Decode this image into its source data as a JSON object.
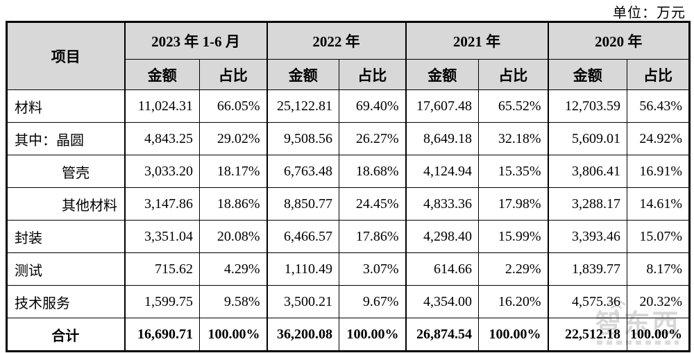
{
  "unit_label": "单位：万元",
  "table": {
    "item_header": "项目",
    "groups": [
      {
        "label": "2023 年 1-6 月",
        "sub": [
          "金额",
          "占比"
        ]
      },
      {
        "label": "2022 年",
        "sub": [
          "金额",
          "占比"
        ]
      },
      {
        "label": "2021 年",
        "sub": [
          "金额",
          "占比"
        ]
      },
      {
        "label": "2020 年",
        "sub": [
          "金额",
          "占比"
        ]
      }
    ],
    "rows": [
      {
        "label": "材料",
        "indent": false,
        "total": false,
        "values": [
          "11,024.31",
          "66.05%",
          "25,122.81",
          "69.40%",
          "17,607.48",
          "65.52%",
          "12,703.59",
          "56.43%"
        ]
      },
      {
        "label": "其中：晶圆",
        "indent": false,
        "total": false,
        "values": [
          "4,843.25",
          "29.02%",
          "9,508.56",
          "26.27%",
          "8,649.18",
          "32.18%",
          "5,609.01",
          "24.92%"
        ]
      },
      {
        "label": "管壳",
        "indent": true,
        "total": false,
        "values": [
          "3,033.20",
          "18.17%",
          "6,763.48",
          "18.68%",
          "4,124.94",
          "15.35%",
          "3,806.41",
          "16.91%"
        ]
      },
      {
        "label": "其他材料",
        "indent": true,
        "total": false,
        "values": [
          "3,147.86",
          "18.86%",
          "8,850.77",
          "24.45%",
          "4,833.36",
          "17.98%",
          "3,288.17",
          "14.61%"
        ]
      },
      {
        "label": "封装",
        "indent": false,
        "total": false,
        "values": [
          "3,351.04",
          "20.08%",
          "6,466.57",
          "17.86%",
          "4,298.40",
          "15.99%",
          "3,393.46",
          "15.07%"
        ]
      },
      {
        "label": "测试",
        "indent": false,
        "total": false,
        "values": [
          "715.62",
          "4.29%",
          "1,110.49",
          "3.07%",
          "614.66",
          "2.29%",
          "1,839.77",
          "8.17%"
        ]
      },
      {
        "label": "技术服务",
        "indent": false,
        "total": false,
        "values": [
          "1,599.75",
          "9.58%",
          "3,500.21",
          "9.67%",
          "4,354.00",
          "16.20%",
          "4,575.36",
          "20.32%"
        ]
      },
      {
        "label": "合计",
        "indent": false,
        "total": true,
        "values": [
          "16,690.71",
          "100.00%",
          "36,200.08",
          "100.00%",
          "26,874.54",
          "100.00%",
          "22,512.18",
          "100.00%"
        ]
      }
    ]
  },
  "watermark": {
    "text": "智东西",
    "color": "#9f9f9f"
  }
}
